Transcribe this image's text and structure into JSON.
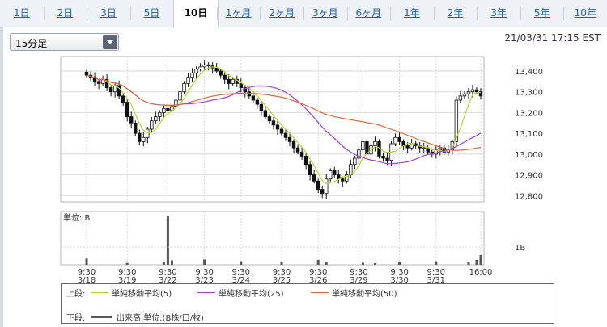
{
  "tabs": [
    {
      "label": "1日",
      "active": false
    },
    {
      "label": "2日",
      "active": false
    },
    {
      "label": "3日",
      "active": false
    },
    {
      "label": "5日",
      "active": false
    },
    {
      "label": "10日",
      "active": true
    },
    {
      "label": "1ヶ月",
      "active": false
    },
    {
      "label": "2ヶ月",
      "active": false
    },
    {
      "label": "3ヶ月",
      "active": false
    },
    {
      "label": "6ヶ月",
      "active": false
    },
    {
      "label": "1年",
      "active": false
    },
    {
      "label": "2年",
      "active": false
    },
    {
      "label": "3年",
      "active": false
    },
    {
      "label": "5年",
      "active": false
    },
    {
      "label": "10年",
      "active": false
    }
  ],
  "interval_select": {
    "value": "15分足"
  },
  "timestamp": "21/03/31 17:15 EST",
  "legend": {
    "upper_label": "上段:",
    "lower_label": "下段:",
    "ma5": "単純移動平均(5)",
    "ma25": "単純移動平均(25)",
    "ma50": "単純移動平均(50)",
    "volume": "出来高 単位:(B株/口/枚)"
  },
  "colors": {
    "candle": "#111111",
    "ma5": "#b8d432",
    "ma25": "#a13fd0",
    "ma50": "#e06a3a",
    "volume": "#555555",
    "grid": "#d9d9d9"
  },
  "chart_data": {
    "type": "candlestick",
    "price": {
      "ylim": [
        12770,
        13470
      ],
      "yticks": [
        "13,400",
        "13,300",
        "13,200",
        "13,100",
        "13,000",
        "12,900",
        "12,800"
      ],
      "ytick_values": [
        13400,
        13300,
        13200,
        13100,
        13000,
        12900,
        12800
      ],
      "close": [
        13380,
        13370,
        13350,
        13340,
        13360,
        13320,
        13300,
        13330,
        13280,
        13250,
        13180,
        13150,
        13100,
        13060,
        13080,
        13120,
        13160,
        13180,
        13200,
        13220,
        13210,
        13230,
        13260,
        13300,
        13340,
        13370,
        13390,
        13410,
        13420,
        13430,
        13425,
        13415,
        13400,
        13380,
        13360,
        13340,
        13360,
        13340,
        13320,
        13300,
        13280,
        13260,
        13240,
        13210,
        13180,
        13160,
        13140,
        13120,
        13100,
        13080,
        13060,
        13030,
        13010,
        12990,
        12950,
        12900,
        12870,
        12830,
        12810,
        12880,
        12920,
        12900,
        12880,
        12870,
        12900,
        12950,
        12980,
        13020,
        13060,
        13000,
        13040,
        13060,
        12990,
        12980,
        12970,
        13050,
        13080,
        13060,
        13040,
        13030,
        13050,
        13040,
        13030,
        13030,
        13010,
        13000,
        13020,
        13030,
        13010,
        13020,
        13060,
        13260,
        13280,
        13290,
        13300,
        13310,
        13300,
        13280
      ]
    },
    "volume": {
      "ylim": [
        0,
        3.0
      ],
      "ytick_label": "1B",
      "ytick_value": 1,
      "unit_label": "単位: B",
      "spikes": [
        [
          0,
          0.35
        ],
        [
          10,
          0.1
        ],
        [
          19,
          0.18
        ],
        [
          20,
          2.75
        ],
        [
          21,
          0.25
        ],
        [
          29,
          0.3
        ],
        [
          38,
          0.2
        ],
        [
          48,
          0.18
        ],
        [
          57,
          0.28
        ],
        [
          59,
          0.15
        ],
        [
          68,
          0.12
        ],
        [
          71,
          0.09
        ],
        [
          77,
          0.15
        ],
        [
          86,
          0.2
        ],
        [
          94,
          0.15
        ],
        [
          96,
          0.28
        ],
        [
          97,
          0.55
        ]
      ]
    },
    "x_labels": [
      {
        "time": "9:30",
        "date": "3/18"
      },
      {
        "time": "9:30",
        "date": "3/19"
      },
      {
        "time": "9:30",
        "date": "3/22"
      },
      {
        "time": "9:30",
        "date": "3/23"
      },
      {
        "time": "9:30",
        "date": "3/24"
      },
      {
        "time": "9:30",
        "date": "3/25"
      },
      {
        "time": "9:30",
        "date": "3/26"
      },
      {
        "time": "9:30",
        "date": "3/29"
      },
      {
        "time": "9:30",
        "date": "3/30"
      },
      {
        "time": "9:30",
        "date": "3/31"
      },
      {
        "time": "16:00",
        "date": ""
      }
    ]
  }
}
